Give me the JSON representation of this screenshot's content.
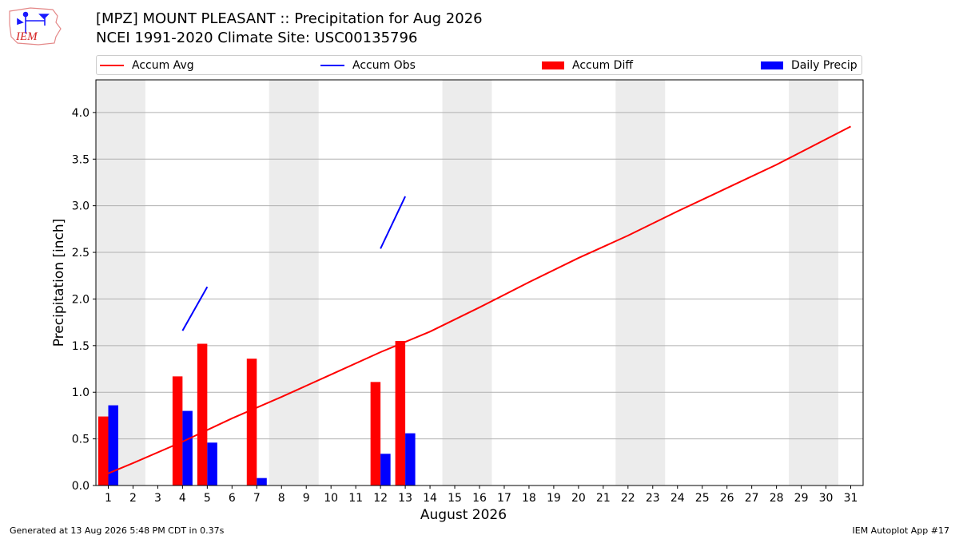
{
  "header": {
    "title_line1": "[MPZ] MOUNT PLEASANT :: Precipitation for Aug 2026",
    "title_line2": "NCEI 1991-2020 Climate Site: USC00135796",
    "logo_text": "IEM"
  },
  "legend": {
    "accum_avg": "Accum Avg",
    "accum_obs": "Accum Obs",
    "accum_diff": "Accum Diff",
    "daily_precip": "Daily Precip"
  },
  "colors": {
    "avg": "#ff0000",
    "obs": "#0000ff",
    "diff": "#ff0000",
    "daily": "#0000ff",
    "weekend_band": "#ececec",
    "grid": "#b0b0b0"
  },
  "footer": {
    "left": "Generated at 13 Aug 2026 5:48 PM CDT in 0.37s",
    "right": "IEM Autoplot App #17"
  },
  "chart_data": {
    "type": "bar",
    "xlabel": "August 2026",
    "ylabel": "Precipitation [inch]",
    "ylim": [
      0,
      4.35
    ],
    "xlim": [
      0.5,
      31.5
    ],
    "yticks": [
      "0.0",
      "0.5",
      "1.0",
      "1.5",
      "2.0",
      "2.5",
      "3.0",
      "3.5",
      "4.0"
    ],
    "xticks": [
      "1",
      "2",
      "3",
      "4",
      "5",
      "6",
      "7",
      "8",
      "9",
      "10",
      "11",
      "12",
      "13",
      "14",
      "15",
      "16",
      "17",
      "18",
      "19",
      "20",
      "21",
      "22",
      "23",
      "24",
      "25",
      "26",
      "27",
      "28",
      "29",
      "30",
      "31"
    ],
    "grid": true,
    "legend_position": "top",
    "weekend_bands": [
      [
        1,
        2
      ],
      [
        8,
        9
      ],
      [
        15,
        16
      ],
      [
        22,
        23
      ],
      [
        29,
        30
      ]
    ],
    "series": [
      {
        "name": "Accum Avg",
        "kind": "line",
        "x": [
          1,
          2,
          4,
          6,
          8,
          10,
          12,
          14,
          16,
          18,
          20,
          22,
          24,
          26,
          28,
          31
        ],
        "values": [
          0.13,
          0.24,
          0.47,
          0.72,
          0.95,
          1.19,
          1.43,
          1.65,
          1.91,
          2.18,
          2.44,
          2.68,
          2.94,
          3.19,
          3.44,
          3.85
        ]
      },
      {
        "name": "Accum Obs",
        "kind": "line",
        "segments": [
          {
            "x": [
              4,
              5
            ],
            "values": [
              1.66,
              2.13
            ]
          },
          {
            "x": [
              12,
              13
            ],
            "values": [
              2.54,
              3.1
            ]
          }
        ]
      },
      {
        "name": "Accum Diff",
        "kind": "bar",
        "x": [
          1,
          4,
          5,
          7,
          12,
          13
        ],
        "values": [
          0.74,
          1.17,
          1.52,
          1.36,
          1.11,
          1.55
        ]
      },
      {
        "name": "Daily Precip",
        "kind": "bar",
        "x": [
          1,
          4,
          5,
          7,
          12,
          13
        ],
        "values": [
          0.86,
          0.8,
          0.46,
          0.08,
          0.34,
          0.56
        ]
      }
    ]
  }
}
